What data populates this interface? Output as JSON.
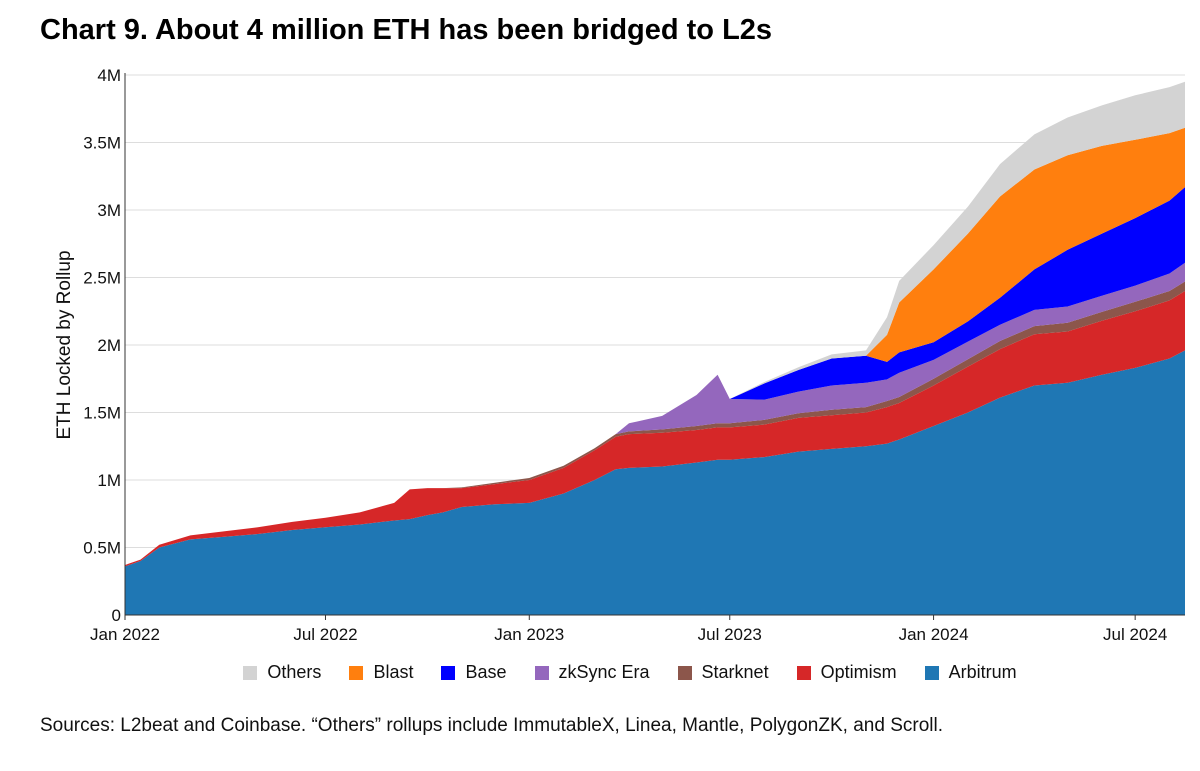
{
  "title": "Chart 9. About 4 million ETH has been bridged to L2s",
  "footnote": "Sources: L2beat and Coinbase. “Others” rollups include ImmutableX, Linea, Mantle, PolygonZK, and Scroll.",
  "chart_data": {
    "type": "area",
    "stacked": true,
    "ylabel": "ETH Locked by Rollup",
    "xlabel": "",
    "ylim": [
      0,
      4000000
    ],
    "xlim": [
      "2022-01-01",
      "2024-08-15"
    ],
    "y_ticks": [
      {
        "value": 0,
        "label": "0"
      },
      {
        "value": 500000,
        "label": "0.5M"
      },
      {
        "value": 1000000,
        "label": "1M"
      },
      {
        "value": 1500000,
        "label": "1.5M"
      },
      {
        "value": 2000000,
        "label": "2M"
      },
      {
        "value": 2500000,
        "label": "2.5M"
      },
      {
        "value": 3000000,
        "label": "3M"
      },
      {
        "value": 3500000,
        "label": "3.5M"
      },
      {
        "value": 4000000,
        "label": "4M"
      }
    ],
    "x_ticks": [
      {
        "value": "2022-01-01",
        "label": "Jan 2022"
      },
      {
        "value": "2022-07-01",
        "label": "Jul 2022"
      },
      {
        "value": "2023-01-01",
        "label": "Jan 2023"
      },
      {
        "value": "2023-07-01",
        "label": "Jul 2023"
      },
      {
        "value": "2024-01-01",
        "label": "Jan 2024"
      },
      {
        "value": "2024-07-01",
        "label": "Jul 2024"
      }
    ],
    "grid": true,
    "legend_position": "bottom",
    "x": [
      "2022-01-01",
      "2022-01-15",
      "2022-02-01",
      "2022-03-01",
      "2022-04-01",
      "2022-05-01",
      "2022-06-01",
      "2022-07-01",
      "2022-08-01",
      "2022-09-01",
      "2022-09-15",
      "2022-10-01",
      "2022-10-15",
      "2022-11-01",
      "2022-12-01",
      "2023-01-01",
      "2023-02-01",
      "2023-03-01",
      "2023-03-20",
      "2023-04-01",
      "2023-05-01",
      "2023-06-01",
      "2023-06-20",
      "2023-07-01",
      "2023-08-01",
      "2023-09-01",
      "2023-10-01",
      "2023-11-01",
      "2023-11-20",
      "2023-12-01",
      "2024-01-01",
      "2024-02-01",
      "2024-03-01",
      "2024-04-01",
      "2024-05-01",
      "2024-06-01",
      "2024-07-01",
      "2024-08-01",
      "2024-08-15"
    ],
    "series": [
      {
        "name": "Arbitrum",
        "color": "#1f77b4",
        "values": [
          360000,
          400000,
          500000,
          560000,
          580000,
          600000,
          630000,
          650000,
          670000,
          700000,
          710000,
          740000,
          760000,
          800000,
          820000,
          830000,
          900000,
          1000000,
          1080000,
          1090000,
          1100000,
          1130000,
          1150000,
          1150000,
          1170000,
          1210000,
          1230000,
          1250000,
          1270000,
          1300000,
          1400000,
          1500000,
          1610000,
          1700000,
          1720000,
          1780000,
          1830000,
          1900000,
          1960000
        ]
      },
      {
        "name": "Optimism",
        "color": "#d62728",
        "values": [
          10000,
          10000,
          20000,
          30000,
          40000,
          50000,
          60000,
          70000,
          90000,
          130000,
          220000,
          200000,
          180000,
          140000,
          150000,
          170000,
          190000,
          220000,
          240000,
          250000,
          250000,
          240000,
          240000,
          240000,
          240000,
          250000,
          250000,
          250000,
          270000,
          270000,
          300000,
          340000,
          360000,
          380000,
          380000,
          400000,
          420000,
          430000,
          440000
        ]
      },
      {
        "name": "Starknet",
        "color": "#8c564b",
        "values": [
          0,
          0,
          0,
          0,
          0,
          0,
          0,
          0,
          0,
          0,
          0,
          0,
          0,
          5000,
          10000,
          15000,
          15000,
          15000,
          20000,
          20000,
          25000,
          30000,
          30000,
          30000,
          35000,
          35000,
          40000,
          40000,
          45000,
          45000,
          50000,
          55000,
          60000,
          60000,
          65000,
          65000,
          70000,
          70000,
          70000
        ]
      },
      {
        "name": "zkSync Era",
        "color": "#9467bd",
        "values": [
          0,
          0,
          0,
          0,
          0,
          0,
          0,
          0,
          0,
          0,
          0,
          0,
          0,
          0,
          0,
          0,
          0,
          0,
          0,
          60000,
          100000,
          230000,
          360000,
          180000,
          150000,
          160000,
          180000,
          180000,
          160000,
          180000,
          140000,
          130000,
          120000,
          120000,
          120000,
          120000,
          120000,
          130000,
          140000
        ]
      },
      {
        "name": "Base",
        "color": "#0000ff",
        "values": [
          0,
          0,
          0,
          0,
          0,
          0,
          0,
          0,
          0,
          0,
          0,
          0,
          0,
          0,
          0,
          0,
          0,
          0,
          0,
          0,
          0,
          0,
          0,
          0,
          120000,
          160000,
          200000,
          200000,
          130000,
          150000,
          130000,
          150000,
          200000,
          300000,
          420000,
          460000,
          500000,
          540000,
          560000
        ]
      },
      {
        "name": "Blast",
        "color": "#ff7f0e",
        "values": [
          0,
          0,
          0,
          0,
          0,
          0,
          0,
          0,
          0,
          0,
          0,
          0,
          0,
          0,
          0,
          0,
          0,
          0,
          0,
          0,
          0,
          0,
          0,
          0,
          0,
          0,
          0,
          0,
          200000,
          370000,
          540000,
          650000,
          750000,
          740000,
          700000,
          650000,
          580000,
          500000,
          440000
        ]
      },
      {
        "name": "Others",
        "color": "#d3d3d3",
        "values": [
          0,
          0,
          0,
          0,
          0,
          0,
          0,
          0,
          0,
          0,
          0,
          0,
          0,
          0,
          0,
          0,
          0,
          0,
          0,
          0,
          0,
          0,
          0,
          0,
          10000,
          20000,
          30000,
          40000,
          130000,
          160000,
          180000,
          200000,
          240000,
          260000,
          280000,
          300000,
          330000,
          340000,
          340000
        ]
      }
    ]
  },
  "legend": [
    {
      "name": "Others",
      "color": "#d3d3d3"
    },
    {
      "name": "Blast",
      "color": "#ff7f0e"
    },
    {
      "name": "Base",
      "color": "#0000ff"
    },
    {
      "name": "zkSync Era",
      "color": "#9467bd"
    },
    {
      "name": "Starknet",
      "color": "#8c564b"
    },
    {
      "name": "Optimism",
      "color": "#d62728"
    },
    {
      "name": "Arbitrum",
      "color": "#1f77b4"
    }
  ]
}
